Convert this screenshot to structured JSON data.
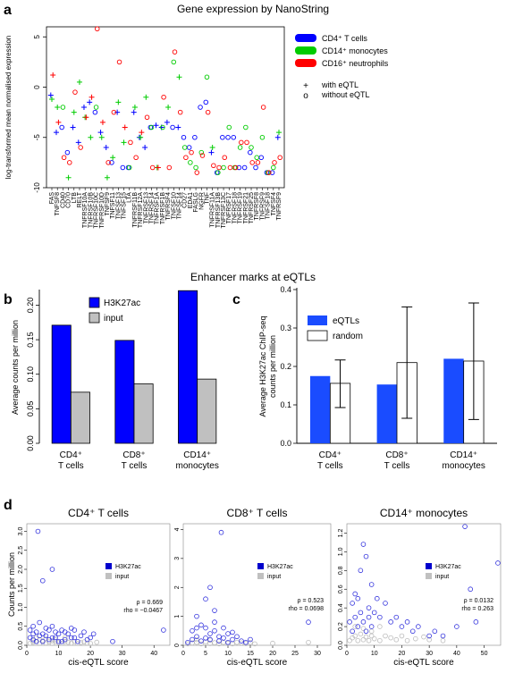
{
  "panel_labels": {
    "a": "a",
    "b": "b",
    "c": "c",
    "d": "d"
  },
  "section_titles": {
    "b_c": "Enhancer marks at eQTLs"
  },
  "chart_data": [
    {
      "id": "a",
      "type": "scatter",
      "title": "Gene expression by NanoString",
      "ylabel": "log-transformed mean normalised expression",
      "ylim": [
        -10,
        6
      ],
      "yticks": [
        -10,
        -5,
        0,
        5
      ],
      "genes": [
        "FAS",
        "TNFSF8",
        "CD40",
        "CD70",
        "LTB",
        "RELT",
        "TNFRSF10A",
        "TNFRSF10B",
        "TNFRSF10C",
        "TNFRSF10D",
        "TNFSF9",
        "TNFSF11",
        "TNFSF13",
        "TNFSF15",
        "LTA",
        "TNFRSF11B",
        "TNFRSF12A",
        "TNFRSF13",
        "TNFRSF14",
        "TNFRSF1A",
        "TNFRSF1B",
        "TNFRSF4",
        "TNFSF10",
        "TNFSF14",
        "CD27",
        "EDA1",
        "FASLG",
        "NGFR",
        "TNF",
        "TNFRSF11A",
        "TNFRSF13B",
        "TNFRSF13C",
        "TNFRSF17",
        "TNFRSF18",
        "TNFRSF19",
        "TNFRSF21",
        "TNFRSF25",
        "TNFRSF8",
        "TNFRSF9",
        "TNFSF18",
        "TNFSF4",
        "TNFRSF9"
      ],
      "legend": {
        "series": [
          {
            "name": "CD4⁺ T cells",
            "color": "#0000ff"
          },
          {
            "name": "CD14⁺ monocytes",
            "color": "#00cc00"
          },
          {
            "name": "CD16⁺ neutrophils",
            "color": "#ff0000"
          }
        ],
        "markers": [
          {
            "symbol": "+",
            "label": "with eQTL"
          },
          {
            "symbol": "o",
            "label": "without eQTL"
          }
        ]
      },
      "series": [
        {
          "name": "CD4⁺ T cells",
          "color": "#0000ff",
          "values": [
            -0.8,
            -4.5,
            -4,
            -6.5,
            -4,
            -5.5,
            -2,
            -1.5,
            -2.5,
            -4.5,
            -6,
            -7.5,
            -2.5,
            -8,
            -8,
            -2.5,
            -5,
            -6,
            -4,
            -3.8,
            -4,
            -3.5,
            -4,
            -4,
            -5,
            -6,
            -5,
            -2,
            -1.5,
            -6.5,
            -8.5,
            -5,
            -5,
            -5,
            -8,
            -8,
            -6.5,
            -8,
            -7,
            -8.5,
            -8.5,
            -5
          ],
          "eqtl": [
            1,
            1,
            0,
            0,
            1,
            1,
            1,
            1,
            0,
            1,
            1,
            0,
            1,
            0,
            0,
            1,
            1,
            1,
            0,
            1,
            1,
            1,
            0,
            1,
            0,
            0,
            0,
            0,
            0,
            1,
            0,
            0,
            0,
            0,
            0,
            0,
            0,
            0,
            0,
            0,
            0,
            1
          ]
        },
        {
          "name": "CD14⁺ monocytes",
          "color": "#00cc00",
          "values": [
            -1.2,
            -2,
            -2,
            -9,
            -2.5,
            0.5,
            -3,
            -5,
            -2,
            -5,
            -9,
            -7,
            -1.5,
            -5.5,
            -8,
            -2,
            -5,
            -1,
            -4,
            -8,
            -4,
            -2,
            2.5,
            1,
            -6,
            -7.5,
            -8,
            -6.5,
            1,
            -6,
            -8.5,
            -8,
            -4,
            -8,
            -6,
            -4,
            -6,
            -7,
            -5,
            -8.5,
            -8,
            -4.5
          ],
          "eqtl": [
            1,
            1,
            0,
            1,
            1,
            1,
            1,
            1,
            0,
            1,
            1,
            1,
            1,
            1,
            0,
            1,
            1,
            1,
            0,
            1,
            0,
            1,
            0,
            1,
            0,
            0,
            0,
            0,
            0,
            1,
            0,
            0,
            0,
            0,
            0,
            0,
            0,
            0,
            0,
            0,
            0,
            1
          ]
        },
        {
          "name": "CD16⁺ neutrophils",
          "color": "#ff0000",
          "values": [
            1.2,
            -3.5,
            -7,
            -7.5,
            -0.5,
            -6,
            -3,
            -1,
            5.8,
            -3.5,
            -7.5,
            -2.5,
            2.5,
            -4,
            -5.5,
            -7,
            -4.5,
            -3,
            -8,
            -8,
            -1,
            -8,
            3.5,
            -2.5,
            -7,
            -6.5,
            -8.5,
            -6.8,
            -2.5,
            -7.8,
            -8,
            -7,
            -8,
            -8,
            -5.5,
            -5.5,
            -7.5,
            -7.5,
            -2,
            -8.5,
            -7.5,
            -7
          ],
          "eqtl": [
            1,
            1,
            0,
            0,
            0,
            0,
            1,
            1,
            0,
            1,
            0,
            0,
            0,
            1,
            0,
            0,
            1,
            0,
            0,
            1,
            0,
            0,
            0,
            0,
            0,
            0,
            0,
            0,
            0,
            0,
            0,
            0,
            0,
            0,
            0,
            0,
            0,
            0,
            0,
            0,
            0,
            0
          ]
        }
      ]
    },
    {
      "id": "b",
      "type": "bar",
      "categories": [
        "CD4⁺\nT cells",
        "CD8⁺\nT cells",
        "CD14⁺\nmonocytes"
      ],
      "ylabel": "Average counts per million",
      "ylim": [
        0,
        0.22
      ],
      "yticks": [
        "0.00",
        "0.05",
        "0.10",
        "0.15",
        "0.20"
      ],
      "series": [
        {
          "name": "H3K27ac",
          "color": "#0000ff",
          "values": [
            0.171,
            0.149,
            0.221
          ]
        },
        {
          "name": "input",
          "color": "#c0c0c0",
          "values": [
            0.074,
            0.086,
            0.093
          ]
        }
      ]
    },
    {
      "id": "c",
      "type": "bar",
      "categories": [
        "CD4⁺\nT cells",
        "CD8⁺\nT cells",
        "CD14⁺\nmonocytes"
      ],
      "ylabel": "Average H3K27ac ChIP-seq\ncounts per million",
      "ylim": [
        0,
        0.4
      ],
      "yticks": [
        "0.0",
        "0.1",
        "0.2",
        "0.3",
        "0.4"
      ],
      "series": [
        {
          "name": "eQTLs",
          "color": "#1a4cff",
          "values": [
            0.175,
            0.153,
            0.22
          ]
        },
        {
          "name": "random",
          "color": "#ffffff",
          "values": [
            0.156,
            0.21,
            0.214
          ],
          "err_low": [
            0.093,
            0.065,
            0.062
          ],
          "err_high": [
            0.217,
            0.355,
            0.365
          ]
        }
      ]
    },
    {
      "id": "d1",
      "type": "scatter",
      "title": "CD4⁺ T cells",
      "xlabel": "cis-eQTL score",
      "ylabel": "Counts per million",
      "xlim": [
        0,
        45
      ],
      "ylim": [
        0,
        3.2
      ],
      "xticks": [
        0,
        10,
        20,
        30,
        40
      ],
      "yticks": [
        0.0,
        0.5,
        1.0,
        1.5,
        2.0,
        2.5,
        3.0
      ],
      "ytick_labels": [
        "0.0",
        "0.5",
        "1.0",
        "1.5",
        "2.0",
        "2.5",
        "3.0"
      ],
      "legend": [
        {
          "name": "H3K27ac",
          "color": "#0000cc"
        },
        {
          "name": "input",
          "color": "#c0c0c0"
        }
      ],
      "annotation": [
        "ρ = 0.669",
        "rho = −0.0467"
      ],
      "points_h3k27ac": [
        [
          3.5,
          3.0
        ],
        [
          5,
          1.7
        ],
        [
          8,
          2.0
        ],
        [
          1,
          0.4
        ],
        [
          2,
          0.5
        ],
        [
          3,
          0.35
        ],
        [
          4,
          0.6
        ],
        [
          5,
          0.3
        ],
        [
          6,
          0.25
        ],
        [
          7,
          0.4
        ],
        [
          8,
          0.5
        ],
        [
          9,
          0.2
        ],
        [
          10,
          0.3
        ],
        [
          11,
          0.4
        ],
        [
          12,
          0.15
        ],
        [
          13,
          0.3
        ],
        [
          14,
          0.2
        ],
        [
          15,
          0.4
        ],
        [
          16,
          0.1
        ],
        [
          17,
          0.25
        ],
        [
          18,
          0.35
        ],
        [
          19,
          0.15
        ],
        [
          20,
          0.2
        ],
        [
          21,
          0.3
        ],
        [
          1,
          0.2
        ],
        [
          2,
          0.15
        ],
        [
          3,
          0.1
        ],
        [
          4,
          0.25
        ],
        [
          6,
          0.45
        ],
        [
          7,
          0.15
        ],
        [
          9,
          0.35
        ],
        [
          10,
          0.1
        ],
        [
          12,
          0.35
        ],
        [
          14,
          0.45
        ],
        [
          2,
          0.3
        ],
        [
          5,
          0.1
        ],
        [
          8,
          0.2
        ],
        [
          11,
          0.1
        ],
        [
          15,
          0.2
        ],
        [
          43,
          0.4
        ],
        [
          27,
          0.1
        ]
      ],
      "points_input": [
        [
          1,
          0.05
        ],
        [
          2,
          0.08
        ],
        [
          3,
          0.1
        ],
        [
          4,
          0.05
        ],
        [
          5,
          0.12
        ],
        [
          6,
          0.06
        ],
        [
          7,
          0.09
        ],
        [
          8,
          0.05
        ],
        [
          9,
          0.1
        ],
        [
          10,
          0.07
        ],
        [
          11,
          0.05
        ],
        [
          12,
          0.1
        ],
        [
          13,
          0.08
        ],
        [
          14,
          0.06
        ],
        [
          15,
          0.1
        ],
        [
          16,
          0.05
        ],
        [
          17,
          0.07
        ],
        [
          18,
          0.09
        ],
        [
          19,
          0.06
        ],
        [
          20,
          0.05
        ],
        [
          22,
          0.08
        ],
        [
          3,
          0.2
        ],
        [
          6,
          0.18
        ],
        [
          9,
          0.15
        ],
        [
          12,
          0.2
        ],
        [
          2,
          0.12
        ],
        [
          4,
          0.15
        ],
        [
          8,
          0.12
        ]
      ]
    },
    {
      "id": "d2",
      "type": "scatter",
      "title": "CD8⁺ T cells",
      "xlabel": "cis-eQTL score",
      "ylabel": "",
      "xlim": [
        0,
        33
      ],
      "ylim": [
        0,
        4.2
      ],
      "xticks": [
        0,
        5,
        10,
        15,
        20,
        25,
        30
      ],
      "yticks": [
        0,
        1,
        2,
        3,
        4
      ],
      "ytick_labels": [
        "0",
        "1",
        "2",
        "3",
        "4"
      ],
      "legend": [
        {
          "name": "H3K27ac",
          "color": "#0000cc"
        },
        {
          "name": "input",
          "color": "#c0c0c0"
        }
      ],
      "annotation": [
        "ρ = 0.523",
        "rho = 0.0698"
      ],
      "points_h3k27ac": [
        [
          8.5,
          3.9
        ],
        [
          6,
          2.0
        ],
        [
          5,
          1.6
        ],
        [
          7,
          1.2
        ],
        [
          3,
          1.0
        ],
        [
          4,
          0.7
        ],
        [
          2,
          0.5
        ],
        [
          5,
          0.6
        ],
        [
          6,
          0.4
        ],
        [
          7,
          0.5
        ],
        [
          8,
          0.3
        ],
        [
          9,
          0.6
        ],
        [
          10,
          0.4
        ],
        [
          11,
          0.2
        ],
        [
          12,
          0.3
        ],
        [
          13,
          0.15
        ],
        [
          2,
          0.2
        ],
        [
          3,
          0.3
        ],
        [
          4,
          0.15
        ],
        [
          5,
          0.25
        ],
        [
          6,
          0.2
        ],
        [
          8,
          0.15
        ],
        [
          9,
          0.25
        ],
        [
          10,
          0.1
        ],
        [
          1,
          0.1
        ],
        [
          28,
          0.8
        ],
        [
          14,
          0.1
        ],
        [
          15,
          0.2
        ],
        [
          11,
          0.45
        ],
        [
          3,
          0.6
        ],
        [
          7,
          0.8
        ]
      ],
      "points_input": [
        [
          1,
          0.05
        ],
        [
          2,
          0.08
        ],
        [
          3,
          0.1
        ],
        [
          4,
          0.05
        ],
        [
          5,
          0.12
        ],
        [
          6,
          0.06
        ],
        [
          7,
          0.09
        ],
        [
          8,
          0.05
        ],
        [
          9,
          0.1
        ],
        [
          10,
          0.07
        ],
        [
          11,
          0.05
        ],
        [
          12,
          0.1
        ],
        [
          13,
          0.08
        ],
        [
          14,
          0.06
        ],
        [
          15,
          0.1
        ],
        [
          16,
          0.05
        ],
        [
          20,
          0.07
        ],
        [
          28,
          0.1
        ],
        [
          3,
          0.2
        ],
        [
          6,
          0.18
        ]
      ]
    },
    {
      "id": "d3",
      "type": "scatter",
      "title": "CD14⁺ monocytes",
      "xlabel": "cis-eQTL score",
      "ylabel": "",
      "xlim": [
        0,
        56
      ],
      "ylim": [
        0,
        1.3
      ],
      "xticks": [
        0,
        10,
        20,
        30,
        40,
        50
      ],
      "yticks": [
        0.0,
        0.2,
        0.4,
        0.6,
        0.8,
        1.0,
        1.2
      ],
      "ytick_labels": [
        "0.0",
        "0.2",
        "0.4",
        "0.6",
        "0.8",
        "1.0",
        "1.2"
      ],
      "legend": [
        {
          "name": "H3K27ac",
          "color": "#0000cc"
        },
        {
          "name": "input",
          "color": "#c0c0c0"
        }
      ],
      "annotation": [
        "ρ = 0.0132",
        "rho = 0.263"
      ],
      "points_h3k27ac": [
        [
          43,
          1.27
        ],
        [
          6,
          1.08
        ],
        [
          7,
          0.95
        ],
        [
          5,
          0.8
        ],
        [
          9,
          0.65
        ],
        [
          3,
          0.55
        ],
        [
          2,
          0.45
        ],
        [
          4,
          0.5
        ],
        [
          8,
          0.4
        ],
        [
          10,
          0.35
        ],
        [
          12,
          0.3
        ],
        [
          14,
          0.45
        ],
        [
          16,
          0.25
        ],
        [
          18,
          0.3
        ],
        [
          20,
          0.2
        ],
        [
          22,
          0.25
        ],
        [
          24,
          0.15
        ],
        [
          26,
          0.2
        ],
        [
          30,
          0.1
        ],
        [
          32,
          0.15
        ],
        [
          35,
          0.1
        ],
        [
          40,
          0.2
        ],
        [
          45,
          0.6
        ],
        [
          55,
          0.88
        ],
        [
          47,
          0.25
        ],
        [
          3,
          0.3
        ],
        [
          4,
          0.2
        ],
        [
          5,
          0.35
        ],
        [
          6,
          0.25
        ],
        [
          7,
          0.15
        ],
        [
          8,
          0.3
        ],
        [
          9,
          0.2
        ],
        [
          2,
          0.15
        ],
        [
          1,
          0.25
        ],
        [
          11,
          0.5
        ]
      ],
      "points_input": [
        [
          1,
          0.05
        ],
        [
          2,
          0.08
        ],
        [
          3,
          0.1
        ],
        [
          4,
          0.05
        ],
        [
          5,
          0.12
        ],
        [
          6,
          0.06
        ],
        [
          7,
          0.09
        ],
        [
          8,
          0.05
        ],
        [
          9,
          0.1
        ],
        [
          10,
          0.07
        ],
        [
          12,
          0.05
        ],
        [
          14,
          0.1
        ],
        [
          16,
          0.08
        ],
        [
          18,
          0.06
        ],
        [
          20,
          0.1
        ],
        [
          22,
          0.05
        ],
        [
          25,
          0.07
        ],
        [
          28,
          0.09
        ],
        [
          30,
          0.06
        ],
        [
          35,
          0.05
        ],
        [
          3,
          0.2
        ],
        [
          6,
          0.18
        ],
        [
          9,
          0.15
        ],
        [
          12,
          0.2
        ]
      ]
    }
  ]
}
